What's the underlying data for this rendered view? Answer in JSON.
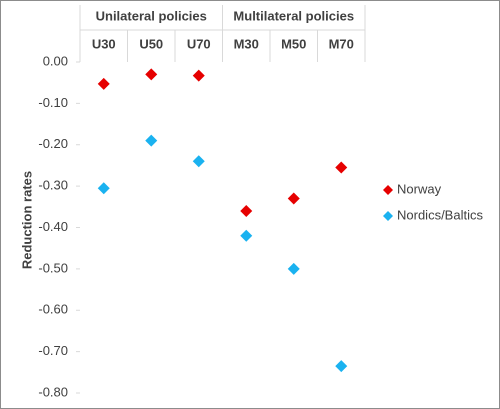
{
  "chart_data": {
    "type": "scatter",
    "category_groups": [
      "Unilateral policies",
      "Multilateral policies"
    ],
    "categories": [
      "U30",
      "U50",
      "U70",
      "M30",
      "M50",
      "M70"
    ],
    "y_label": "Reduction rates",
    "series": [
      {
        "name": "Norway",
        "color": "#e60000",
        "values": [
          -0.053,
          -0.03,
          -0.033,
          -0.36,
          -0.33,
          -0.255
        ]
      },
      {
        "name": "Nordics/Baltics",
        "color": "#1ab2f0",
        "values": [
          -0.305,
          -0.19,
          -0.24,
          -0.42,
          -0.5,
          -0.735
        ]
      }
    ],
    "ylim": [
      -0.8,
      0
    ],
    "yticks": [
      {
        "value": 0,
        "label": "0.00"
      },
      {
        "value": -0.1,
        "label": "-0.10"
      },
      {
        "value": -0.2,
        "label": "-0.20"
      },
      {
        "value": -0.3,
        "label": "-0.30"
      },
      {
        "value": -0.4,
        "label": "-0.40"
      },
      {
        "value": -0.5,
        "label": "-0.50"
      },
      {
        "value": -0.6,
        "label": "-0.60"
      },
      {
        "value": -0.7,
        "label": "-0.70"
      },
      {
        "value": -0.8,
        "label": "-0.80"
      }
    ]
  }
}
